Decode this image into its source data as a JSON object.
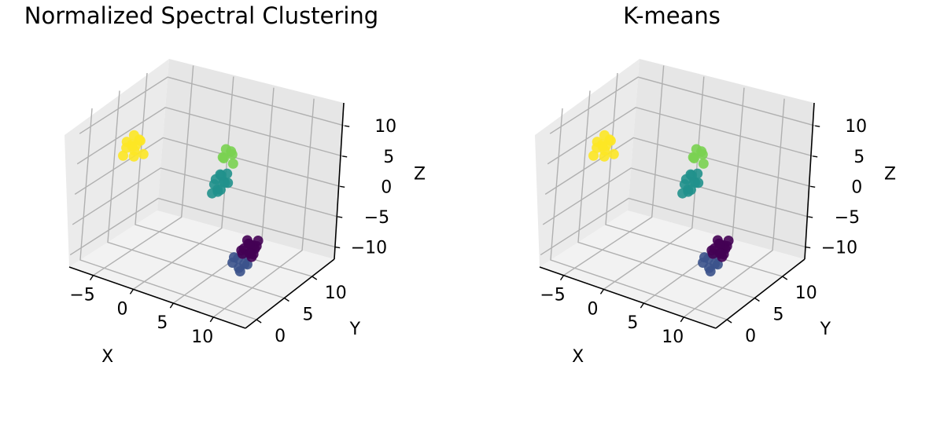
{
  "chart_data": [
    {
      "type": "scatter",
      "title": "Normalized Spectral Clustering",
      "xlabel": "X",
      "ylabel": "Y",
      "zlabel": "Z",
      "xticks": [
        "−5",
        "0",
        "5",
        "10"
      ],
      "yticks": [
        "0",
        "5",
        "10"
      ],
      "zticks": [
        "10",
        "5",
        "0",
        "−5",
        "−10"
      ],
      "xlim": [
        -8,
        14
      ],
      "ylim": [
        -2,
        14
      ],
      "zlim": [
        -12,
        13
      ],
      "grid": true,
      "series": [
        {
          "color": "#fde725",
          "points": [
            [
              -6,
              4,
              6
            ],
            [
              -5.5,
              4.5,
              7
            ],
            [
              -5,
              4,
              5
            ],
            [
              -6,
              3.5,
              4
            ],
            [
              -5,
              5,
              6
            ],
            [
              -4.5,
              4,
              7
            ],
            [
              -5.5,
              5,
              5
            ],
            [
              -6,
              5,
              5
            ],
            [
              -5,
              3.5,
              6
            ],
            [
              -4.5,
              5,
              4
            ],
            [
              -5,
              4,
              4
            ],
            [
              -6,
              4,
              5
            ]
          ]
        },
        {
          "color": "#7ad151",
          "points": [
            [
              2,
              10,
              3
            ],
            [
              2.5,
              11,
              3
            ],
            [
              1.5,
              11,
              2
            ],
            [
              2,
              11.5,
              3
            ],
            [
              3,
              10.5,
              2
            ],
            [
              2,
              10.5,
              4
            ]
          ]
        },
        {
          "color": "#21918c",
          "points": [
            [
              2,
              9,
              0
            ],
            [
              3,
              9,
              0
            ],
            [
              2.5,
              10,
              -1
            ],
            [
              3,
              8.5,
              -1
            ],
            [
              2,
              9.5,
              -2
            ],
            [
              3,
              9.5,
              1
            ],
            [
              2.5,
              8,
              0
            ],
            [
              3,
              8,
              -1
            ],
            [
              2,
              8.5,
              -2
            ],
            [
              2.5,
              9,
              1
            ],
            [
              3.5,
              9,
              0
            ],
            [
              2,
              10,
              0
            ]
          ]
        },
        {
          "color": "#3b528b",
          "points": [
            [
              8,
              5,
              -8
            ],
            [
              8.5,
              4.5,
              -9
            ],
            [
              9,
              5,
              -7
            ],
            [
              8,
              4,
              -8
            ],
            [
              9,
              4,
              -9
            ],
            [
              7.5,
              5,
              -8
            ],
            [
              8.5,
              5.5,
              -9
            ],
            [
              9.5,
              4.5,
              -8
            ]
          ]
        },
        {
          "color": "#440154",
          "points": [
            [
              8,
              6,
              -7
            ],
            [
              8.5,
              6,
              -6
            ],
            [
              9,
              6.5,
              -7
            ],
            [
              8.5,
              7,
              -7
            ],
            [
              9,
              5.5,
              -7
            ],
            [
              8,
              6.5,
              -6
            ],
            [
              9.5,
              6,
              -6
            ],
            [
              8,
              5.5,
              -7
            ],
            [
              9,
              7,
              -6
            ],
            [
              8.5,
              5,
              -7
            ],
            [
              9.5,
              5.5,
              -7
            ],
            [
              8,
              7,
              -7
            ],
            [
              9,
              6,
              -8
            ],
            [
              8.5,
              6.5,
              -8
            ]
          ]
        }
      ]
    },
    {
      "type": "scatter",
      "title": "K-means",
      "xlabel": "X",
      "ylabel": "Y",
      "zlabel": "Z",
      "xticks": [
        "−5",
        "0",
        "5",
        "10"
      ],
      "yticks": [
        "0",
        "5",
        "10"
      ],
      "zticks": [
        "10",
        "5",
        "0",
        "−5",
        "−10"
      ],
      "xlim": [
        -8,
        14
      ],
      "ylim": [
        -2,
        14
      ],
      "zlim": [
        -12,
        13
      ],
      "grid": true,
      "series": [
        {
          "color": "#fde725",
          "points": [
            [
              -6,
              4,
              6
            ],
            [
              -5.5,
              4.5,
              7
            ],
            [
              -5,
              4,
              5
            ],
            [
              -6,
              3.5,
              4
            ],
            [
              -5,
              5,
              6
            ],
            [
              -4.5,
              4,
              7
            ],
            [
              -5.5,
              5,
              5
            ],
            [
              -6,
              5,
              5
            ],
            [
              -5,
              3.5,
              6
            ],
            [
              -4.5,
              5,
              4
            ],
            [
              -5,
              4,
              4
            ],
            [
              -6,
              4,
              5
            ]
          ]
        },
        {
          "color": "#7ad151",
          "points": [
            [
              2,
              10,
              3
            ],
            [
              2.5,
              11,
              3
            ],
            [
              1.5,
              11,
              2
            ],
            [
              2,
              11.5,
              3
            ],
            [
              3,
              10.5,
              2
            ],
            [
              2,
              10.5,
              4
            ]
          ]
        },
        {
          "color": "#21918c",
          "points": [
            [
              2,
              9,
              0
            ],
            [
              3,
              9,
              0
            ],
            [
              2.5,
              10,
              -1
            ],
            [
              3,
              8.5,
              -1
            ],
            [
              2,
              9.5,
              -2
            ],
            [
              3,
              9.5,
              1
            ],
            [
              2.5,
              8,
              0
            ],
            [
              3,
              8,
              -1
            ],
            [
              2,
              8.5,
              -2
            ],
            [
              2.5,
              9,
              1
            ],
            [
              3.5,
              9,
              0
            ],
            [
              2,
              10,
              0
            ]
          ]
        },
        {
          "color": "#3b528b",
          "points": [
            [
              8,
              5,
              -8
            ],
            [
              8.5,
              4.5,
              -9
            ],
            [
              9,
              5,
              -7
            ],
            [
              8,
              4,
              -8
            ],
            [
              9,
              4,
              -9
            ],
            [
              7.5,
              5,
              -8
            ],
            [
              8.5,
              5.5,
              -9
            ],
            [
              9.5,
              4.5,
              -8
            ]
          ]
        },
        {
          "color": "#440154",
          "points": [
            [
              8,
              6,
              -7
            ],
            [
              8.5,
              6,
              -6
            ],
            [
              9,
              6.5,
              -7
            ],
            [
              8.5,
              7,
              -7
            ],
            [
              9,
              5.5,
              -7
            ],
            [
              8,
              6.5,
              -6
            ],
            [
              9.5,
              6,
              -6
            ],
            [
              8,
              5.5,
              -7
            ],
            [
              9,
              7,
              -6
            ],
            [
              8.5,
              5,
              -7
            ],
            [
              9.5,
              5.5,
              -7
            ],
            [
              8,
              7,
              -7
            ],
            [
              9,
              6,
              -8
            ],
            [
              8.5,
              6.5,
              -8
            ]
          ]
        }
      ]
    }
  ]
}
